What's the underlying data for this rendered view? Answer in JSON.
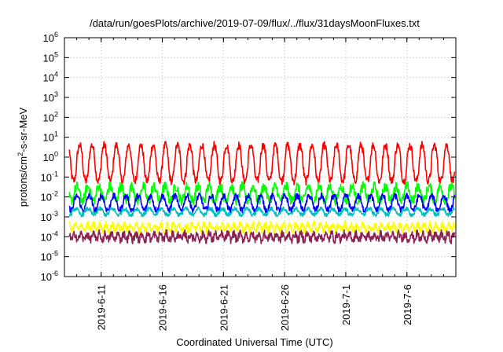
{
  "chart_data": {
    "type": "line",
    "title": "/data/run/goesPlots/archive/2019-07-09/flux/../flux/31daysMoonFluxes.txt",
    "xlabel": "Coordinated Universal Time (UTC)",
    "ylabel_parts": [
      "protons/cm",
      "2",
      "-s-sr-MeV"
    ],
    "yscale": "log",
    "ylim": [
      1e-06,
      1000000.0
    ],
    "y_ticks": [
      {
        "base": "10",
        "exp": "-6"
      },
      {
        "base": "10",
        "exp": "-5"
      },
      {
        "base": "10",
        "exp": "-4"
      },
      {
        "base": "10",
        "exp": "-3"
      },
      {
        "base": "10",
        "exp": "-2"
      },
      {
        "base": "10",
        "exp": "-1"
      },
      {
        "base": "10",
        "exp": "0"
      },
      {
        "base": "10",
        "exp": "1"
      },
      {
        "base": "10",
        "exp": "2"
      },
      {
        "base": "10",
        "exp": "3"
      },
      {
        "base": "10",
        "exp": "4"
      },
      {
        "base": "10",
        "exp": "5"
      },
      {
        "base": "10",
        "exp": "6"
      }
    ],
    "xlim": [
      "2019-06-08",
      "2019-07-10"
    ],
    "x_ticks": [
      "2019-6-11",
      "2019-6-16",
      "2019-6-21",
      "2019-6-26",
      "2019-7-1",
      "2019-7-6"
    ],
    "grid": true,
    "series": [
      {
        "color": "#ff0000",
        "baseline": 0.5,
        "period_days": 1.0,
        "amplitude_decades": 0.9,
        "noise_decades": 0.2
      },
      {
        "color": "#00ff00",
        "baseline": 0.015,
        "period_days": 0.9,
        "amplitude_decades": 0.35,
        "noise_decades": 0.25
      },
      {
        "color": "#0000ff",
        "baseline": 0.005,
        "period_days": 1.0,
        "amplitude_decades": 0.35,
        "noise_decades": 0.15
      },
      {
        "color": "#00bfbf",
        "baseline": 0.0018,
        "period_days": 1.0,
        "amplitude_decades": 0.15,
        "noise_decades": 0.1
      },
      {
        "color": "#ffff00",
        "baseline": 0.0003,
        "period_days": 0.5,
        "amplitude_decades": 0.15,
        "noise_decades": 0.18
      },
      {
        "color": "#8b2252",
        "baseline": 0.0001,
        "period_days": 0.5,
        "amplitude_decades": 0.15,
        "noise_decades": 0.2
      }
    ]
  }
}
